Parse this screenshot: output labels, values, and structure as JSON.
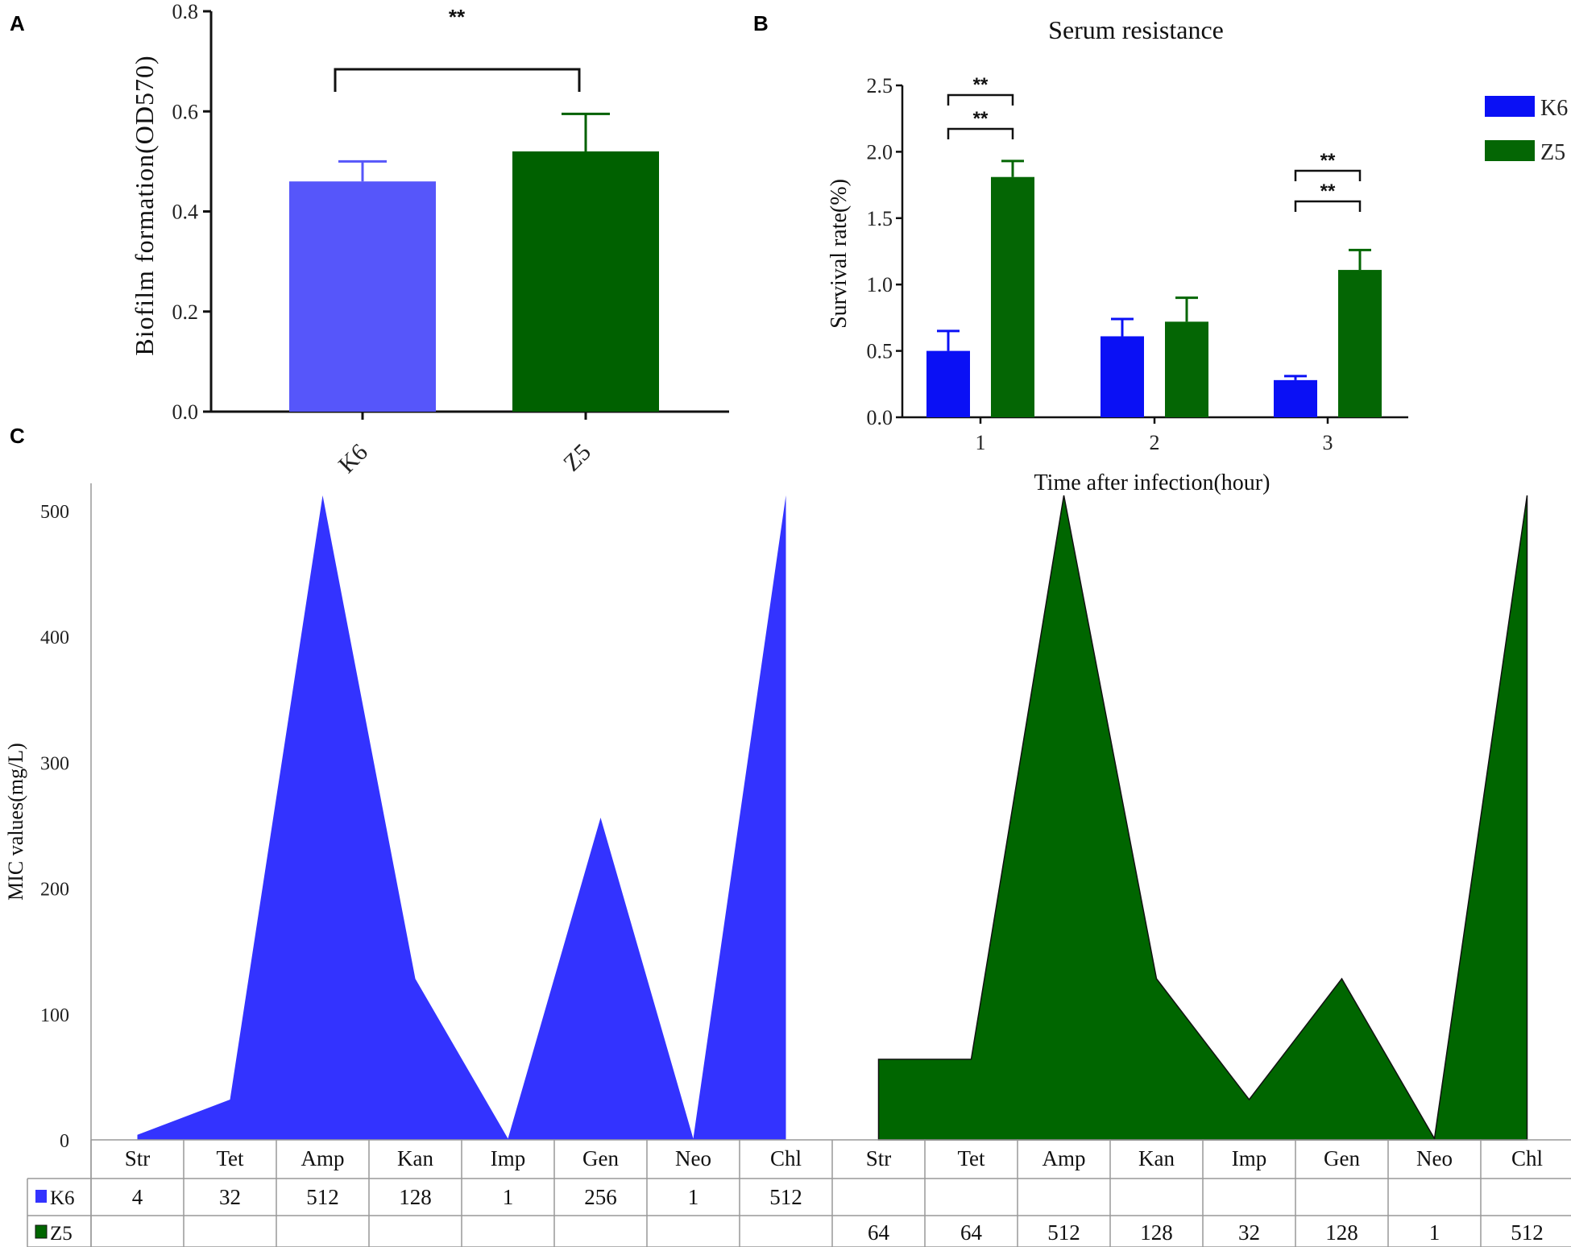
{
  "panel_labels": {
    "a": "A",
    "b": "B",
    "c": "C"
  },
  "chart_data": [
    {
      "id": "A",
      "type": "bar",
      "title": "",
      "xlabel": "",
      "ylabel": "Biofilm formation(OD570)",
      "ylim": [
        0,
        0.8
      ],
      "yticks": [
        "0.0",
        "0.2",
        "0.4",
        "0.6",
        "0.8"
      ],
      "categories": [
        "K6",
        "Z5"
      ],
      "values": [
        0.46,
        0.52
      ],
      "errors": [
        0.04,
        0.075
      ],
      "colors": [
        "#5656fa",
        "#006100"
      ],
      "significance": "**"
    },
    {
      "id": "B",
      "type": "bar",
      "title": "Serum resistance",
      "xlabel": "Time after infection(hour)",
      "ylabel": "Survival rate(%)",
      "ylim": [
        0,
        2.5
      ],
      "yticks": [
        "0.0",
        "0.5",
        "1.0",
        "1.5",
        "2.0",
        "2.5"
      ],
      "categories": [
        "1",
        "2",
        "3"
      ],
      "series": [
        {
          "name": "K6",
          "color": "#0a10f5",
          "values": [
            0.5,
            0.61,
            0.28
          ],
          "errors": [
            0.15,
            0.13,
            0.03
          ]
        },
        {
          "name": "Z5",
          "color": "#046604",
          "values": [
            1.81,
            0.72,
            1.11
          ],
          "errors": [
            0.12,
            0.18,
            0.15
          ]
        }
      ],
      "significance": [
        {
          "group": "1",
          "marks": [
            "**",
            "**"
          ]
        },
        {
          "group": "3",
          "marks": [
            "**",
            "**"
          ]
        }
      ],
      "legend": "top-right"
    },
    {
      "id": "C",
      "type": "area",
      "ylabel": "MIC values(mg/L)",
      "ylim": [
        0,
        512
      ],
      "yticks": [
        "0",
        "100",
        "200",
        "300",
        "400",
        "500"
      ],
      "categories": [
        "Str",
        "Tet",
        "Amp",
        "Kan",
        "Imp",
        "Gen",
        "Neo",
        "Chl"
      ],
      "series": [
        {
          "name": "K6",
          "color": "#3333ff",
          "values": [
            4,
            32,
            512,
            128,
            1,
            256,
            1,
            512
          ],
          "labels": [
            "4",
            "32",
            "512",
            "128",
            "1",
            "256",
            "1",
            "512"
          ]
        },
        {
          "name": "Z5",
          "color": "#006600",
          "values": [
            64,
            64,
            512,
            128,
            32,
            128,
            1,
            512
          ],
          "labels": [
            "64",
            "64",
            "512",
            "128",
            "32",
            "128",
            "1",
            "512"
          ]
        }
      ],
      "layout": "side-by-side with data table below"
    }
  ]
}
